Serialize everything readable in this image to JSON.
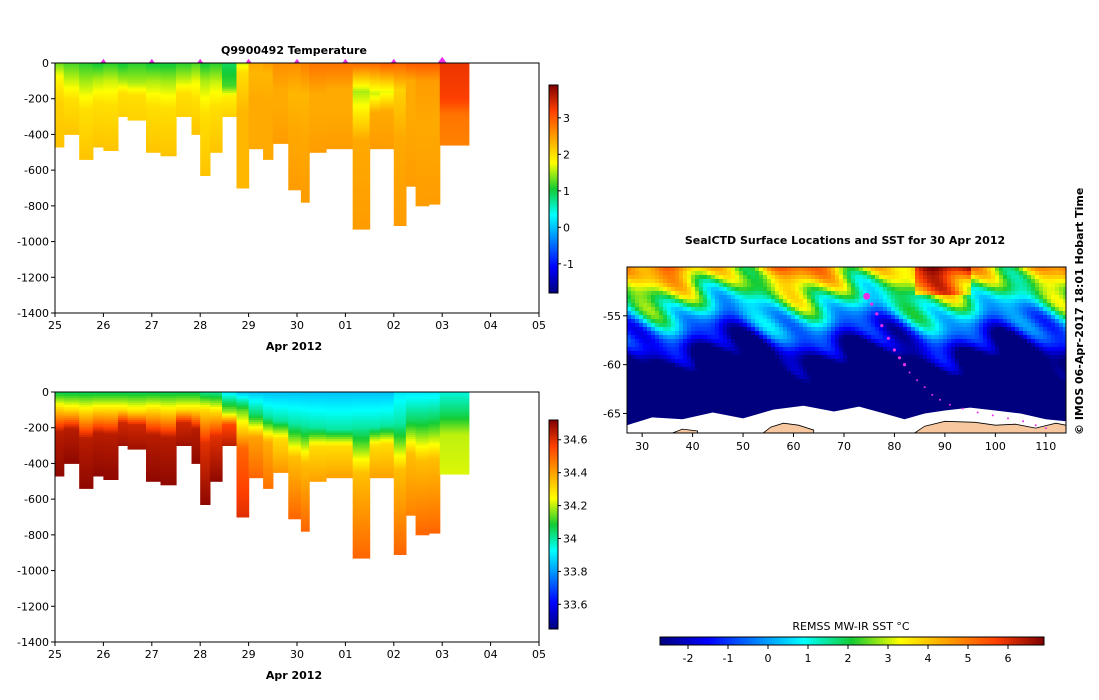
{
  "chart_data": [
    {
      "type": "heatmap",
      "title": "Q9900492  Temperature",
      "variable": "temperature",
      "xlabel": "Apr 2012",
      "x_ticks": [
        "25",
        "26",
        "27",
        "28",
        "29",
        "30",
        "01",
        "02",
        "03",
        "04",
        "05"
      ],
      "x_tick_days": [
        0,
        1,
        2,
        3,
        4,
        5,
        6,
        7,
        8,
        9,
        10
      ],
      "xlim": [
        0,
        10
      ],
      "y_ticks": [
        0,
        -200,
        -400,
        -600,
        -800,
        -1000,
        -1200,
        -1400
      ],
      "ylim": [
        -1400,
        0
      ],
      "colorbar_ticks": [
        -1,
        0,
        1,
        2,
        3
      ],
      "colorbar_range": [
        -1.8,
        3.9
      ],
      "surface_markers_days": [
        1,
        2,
        3,
        4,
        5,
        6,
        7,
        8
      ],
      "profiles": [
        {
          "start": 0.0,
          "end": 0.18,
          "depth": -470,
          "surface": 1.3,
          "mixed_depth": -80,
          "mixed": 1.8,
          "deep": 2.1,
          "bottom": 2.2
        },
        {
          "start": 0.18,
          "end": 0.5,
          "depth": -400,
          "surface": 1.2,
          "mixed_depth": -100,
          "mixed": 1.6,
          "deep": 2.0,
          "bottom": 2.2
        },
        {
          "start": 0.5,
          "end": 0.78,
          "depth": -540,
          "surface": 1.1,
          "mixed_depth": -110,
          "mixed": 1.5,
          "deep": 2.0,
          "bottom": 2.2
        },
        {
          "start": 0.78,
          "end": 1.0,
          "depth": -470,
          "surface": 1.0,
          "mixed_depth": -90,
          "mixed": 1.5,
          "deep": 2.0,
          "bottom": 2.2
        },
        {
          "start": 1.0,
          "end": 1.3,
          "depth": -490,
          "surface": 1.1,
          "mixed_depth": -100,
          "mixed": 1.6,
          "deep": 2.0,
          "bottom": 2.2
        },
        {
          "start": 1.3,
          "end": 1.5,
          "depth": -300,
          "surface": 1.0,
          "mixed_depth": -100,
          "mixed": 1.5,
          "deep": 2.0,
          "bottom": 2.1
        },
        {
          "start": 1.5,
          "end": 1.88,
          "depth": -320,
          "surface": 1.1,
          "mixed_depth": -110,
          "mixed": 1.5,
          "deep": 2.0,
          "bottom": 2.1
        },
        {
          "start": 1.88,
          "end": 2.18,
          "depth": -500,
          "surface": 1.0,
          "mixed_depth": -100,
          "mixed": 1.5,
          "deep": 2.0,
          "bottom": 2.2
        },
        {
          "start": 2.18,
          "end": 2.5,
          "depth": -520,
          "surface": 1.0,
          "mixed_depth": -110,
          "mixed": 1.5,
          "deep": 2.0,
          "bottom": 2.2
        },
        {
          "start": 2.5,
          "end": 2.82,
          "depth": -300,
          "surface": 1.1,
          "mixed_depth": -100,
          "mixed": 1.6,
          "deep": 2.0,
          "bottom": 2.1
        },
        {
          "start": 2.82,
          "end": 3.0,
          "depth": -400,
          "surface": 1.2,
          "mixed_depth": -100,
          "mixed": 1.7,
          "deep": 2.0,
          "bottom": 2.2
        },
        {
          "start": 3.0,
          "end": 3.2,
          "depth": -630,
          "surface": 1.0,
          "mixed_depth": -100,
          "mixed": 1.5,
          "deep": 2.0,
          "bottom": 2.2
        },
        {
          "start": 3.2,
          "end": 3.45,
          "depth": -500,
          "surface": 1.1,
          "mixed_depth": -110,
          "mixed": 1.6,
          "deep": 2.0,
          "bottom": 2.2
        },
        {
          "start": 3.45,
          "end": 3.75,
          "depth": -300,
          "surface": 0.9,
          "mixed_depth": -130,
          "mixed": 1.2,
          "deep": 1.9,
          "bottom": 2.1
        },
        {
          "start": 3.75,
          "end": 4.0,
          "depth": -700,
          "surface": 1.6,
          "mixed_depth": -50,
          "mixed": 2.0,
          "deep": 2.3,
          "bottom": 2.3
        },
        {
          "start": 4.0,
          "end": 4.3,
          "depth": -480,
          "surface": 2.4,
          "mixed_depth": -60,
          "mixed": 2.3,
          "deep": 2.4,
          "bottom": 2.4
        },
        {
          "start": 4.3,
          "end": 4.5,
          "depth": -540,
          "surface": 2.5,
          "mixed_depth": -60,
          "mixed": 2.3,
          "deep": 2.4,
          "bottom": 2.4
        },
        {
          "start": 4.5,
          "end": 4.82,
          "depth": -450,
          "surface": 2.6,
          "mixed_depth": -150,
          "mixed": 2.4,
          "deep": 2.4,
          "bottom": 2.5
        },
        {
          "start": 4.82,
          "end": 5.08,
          "depth": -710,
          "surface": 2.6,
          "mixed_depth": -170,
          "mixed": 2.3,
          "deep": 2.4,
          "bottom": 2.5
        },
        {
          "start": 5.08,
          "end": 5.25,
          "depth": -780,
          "surface": 2.7,
          "mixed_depth": -180,
          "mixed": 2.3,
          "deep": 2.4,
          "bottom": 2.5
        },
        {
          "start": 5.25,
          "end": 5.6,
          "depth": -500,
          "surface": 2.8,
          "mixed_depth": -170,
          "mixed": 2.4,
          "deep": 2.4,
          "bottom": 2.5
        },
        {
          "start": 5.6,
          "end": 6.15,
          "depth": -480,
          "surface": 2.8,
          "mixed_depth": -150,
          "mixed": 2.4,
          "deep": 2.4,
          "bottom": 2.5
        },
        {
          "start": 6.15,
          "end": 6.5,
          "depth": -930,
          "surface": 2.9,
          "mixed_depth": -160,
          "mixed": 1.5,
          "deep": 2.4,
          "bottom": 2.5
        },
        {
          "start": 6.5,
          "end": 6.72,
          "depth": -480,
          "surface": 2.9,
          "mixed_depth": -170,
          "mixed": 1.6,
          "deep": 2.4,
          "bottom": 2.5
        },
        {
          "start": 6.72,
          "end": 7.0,
          "depth": -480,
          "surface": 3.0,
          "mixed_depth": -160,
          "mixed": 1.7,
          "deep": 2.4,
          "bottom": 2.5
        },
        {
          "start": 7.0,
          "end": 7.25,
          "depth": -910,
          "surface": 2.9,
          "mixed_depth": -150,
          "mixed": 2.1,
          "deep": 2.4,
          "bottom": 2.5
        },
        {
          "start": 7.25,
          "end": 7.45,
          "depth": -690,
          "surface": 3.0,
          "mixed_depth": -100,
          "mixed": 2.4,
          "deep": 2.4,
          "bottom": 2.5
        },
        {
          "start": 7.45,
          "end": 7.72,
          "depth": -800,
          "surface": 3.0,
          "mixed_depth": -100,
          "mixed": 2.5,
          "deep": 2.4,
          "bottom": 2.5
        },
        {
          "start": 7.72,
          "end": 7.95,
          "depth": -790,
          "surface": 3.0,
          "mixed_depth": -100,
          "mixed": 2.5,
          "deep": 2.4,
          "bottom": 2.5
        },
        {
          "start": 7.95,
          "end": 8.55,
          "depth": -460,
          "surface": 3.3,
          "mixed_depth": -200,
          "mixed": 3.2,
          "deep": 2.8,
          "bottom": 2.7
        }
      ]
    },
    {
      "type": "heatmap",
      "title": "",
      "variable": "salinity",
      "xlabel": "Apr 2012",
      "x_ticks": [
        "25",
        "26",
        "27",
        "28",
        "29",
        "30",
        "01",
        "02",
        "03",
        "04",
        "05"
      ],
      "x_tick_days": [
        0,
        1,
        2,
        3,
        4,
        5,
        6,
        7,
        8,
        9,
        10
      ],
      "xlim": [
        0,
        10
      ],
      "y_ticks": [
        0,
        -200,
        -400,
        -600,
        -800,
        -1000,
        -1200,
        -1400
      ],
      "ylim": [
        -1400,
        0
      ],
      "colorbar_ticks": [
        33.6,
        33.8,
        34,
        34.2,
        34.4,
        34.6
      ],
      "colorbar_range": [
        33.45,
        34.72
      ],
      "profiles": [
        {
          "start": 0.0,
          "end": 0.18,
          "depth": -470,
          "surface": 34.05,
          "mixed_depth": -90,
          "mixed": 34.3,
          "deep": 34.65,
          "bottom": 34.7
        },
        {
          "start": 0.18,
          "end": 0.5,
          "depth": -400,
          "surface": 34.05,
          "mixed_depth": -100,
          "mixed": 34.3,
          "deep": 34.65,
          "bottom": 34.7
        },
        {
          "start": 0.5,
          "end": 0.78,
          "depth": -540,
          "surface": 34.05,
          "mixed_depth": -110,
          "mixed": 34.3,
          "deep": 34.65,
          "bottom": 34.7
        },
        {
          "start": 0.78,
          "end": 1.0,
          "depth": -470,
          "surface": 34.05,
          "mixed_depth": -100,
          "mixed": 34.3,
          "deep": 34.65,
          "bottom": 34.7
        },
        {
          "start": 1.0,
          "end": 1.3,
          "depth": -490,
          "surface": 34.05,
          "mixed_depth": -100,
          "mixed": 34.3,
          "deep": 34.65,
          "bottom": 34.7
        },
        {
          "start": 1.3,
          "end": 1.5,
          "depth": -300,
          "surface": 34.05,
          "mixed_depth": -100,
          "mixed": 34.3,
          "deep": 34.62,
          "bottom": 34.68
        },
        {
          "start": 1.5,
          "end": 1.88,
          "depth": -320,
          "surface": 34.05,
          "mixed_depth": -110,
          "mixed": 34.3,
          "deep": 34.62,
          "bottom": 34.68
        },
        {
          "start": 1.88,
          "end": 2.18,
          "depth": -500,
          "surface": 34.05,
          "mixed_depth": -100,
          "mixed": 34.3,
          "deep": 34.65,
          "bottom": 34.7
        },
        {
          "start": 2.18,
          "end": 2.5,
          "depth": -520,
          "surface": 34.05,
          "mixed_depth": -110,
          "mixed": 34.3,
          "deep": 34.65,
          "bottom": 34.7
        },
        {
          "start": 2.5,
          "end": 2.82,
          "depth": -300,
          "surface": 34.05,
          "mixed_depth": -100,
          "mixed": 34.3,
          "deep": 34.62,
          "bottom": 34.68
        },
        {
          "start": 2.82,
          "end": 3.0,
          "depth": -400,
          "surface": 34.05,
          "mixed_depth": -100,
          "mixed": 34.3,
          "deep": 34.65,
          "bottom": 34.7
        },
        {
          "start": 3.0,
          "end": 3.2,
          "depth": -630,
          "surface": 34.0,
          "mixed_depth": -100,
          "mixed": 34.3,
          "deep": 34.6,
          "bottom": 34.7
        },
        {
          "start": 3.2,
          "end": 3.45,
          "depth": -500,
          "surface": 34.0,
          "mixed_depth": -110,
          "mixed": 34.3,
          "deep": 34.6,
          "bottom": 34.7
        },
        {
          "start": 3.45,
          "end": 3.75,
          "depth": -300,
          "surface": 33.9,
          "mixed_depth": -120,
          "mixed": 34.2,
          "deep": 34.55,
          "bottom": 34.65
        },
        {
          "start": 3.75,
          "end": 4.0,
          "depth": -700,
          "surface": 33.85,
          "mixed_depth": -110,
          "mixed": 34.15,
          "deep": 34.5,
          "bottom": 34.6
        },
        {
          "start": 4.0,
          "end": 4.3,
          "depth": -480,
          "surface": 33.85,
          "mixed_depth": -130,
          "mixed": 34.05,
          "deep": 34.4,
          "bottom": 34.5
        },
        {
          "start": 4.3,
          "end": 4.5,
          "depth": -540,
          "surface": 33.85,
          "mixed_depth": -140,
          "mixed": 34.0,
          "deep": 34.38,
          "bottom": 34.48
        },
        {
          "start": 4.5,
          "end": 4.82,
          "depth": -450,
          "surface": 33.85,
          "mixed_depth": -160,
          "mixed": 34.0,
          "deep": 34.3,
          "bottom": 34.42
        },
        {
          "start": 4.82,
          "end": 5.08,
          "depth": -710,
          "surface": 33.85,
          "mixed_depth": -180,
          "mixed": 34.0,
          "deep": 34.35,
          "bottom": 34.5
        },
        {
          "start": 5.08,
          "end": 5.25,
          "depth": -780,
          "surface": 33.85,
          "mixed_depth": -190,
          "mixed": 34.0,
          "deep": 34.35,
          "bottom": 34.5
        },
        {
          "start": 5.25,
          "end": 5.6,
          "depth": -500,
          "surface": 33.85,
          "mixed_depth": -200,
          "mixed": 34.0,
          "deep": 34.3,
          "bottom": 34.4
        },
        {
          "start": 5.6,
          "end": 6.15,
          "depth": -480,
          "surface": 33.85,
          "mixed_depth": -210,
          "mixed": 34.0,
          "deep": 34.3,
          "bottom": 34.4
        },
        {
          "start": 6.15,
          "end": 6.5,
          "depth": -930,
          "surface": 33.85,
          "mixed_depth": -200,
          "mixed": 34.0,
          "deep": 34.35,
          "bottom": 34.5
        },
        {
          "start": 6.5,
          "end": 6.72,
          "depth": -480,
          "surface": 33.85,
          "mixed_depth": -200,
          "mixed": 34.0,
          "deep": 34.3,
          "bottom": 34.4
        },
        {
          "start": 6.72,
          "end": 7.0,
          "depth": -480,
          "surface": 33.85,
          "mixed_depth": -190,
          "mixed": 34.0,
          "deep": 34.3,
          "bottom": 34.4
        },
        {
          "start": 7.0,
          "end": 7.25,
          "depth": -910,
          "surface": 33.9,
          "mixed_depth": -180,
          "mixed": 34.0,
          "deep": 34.35,
          "bottom": 34.5
        },
        {
          "start": 7.25,
          "end": 7.45,
          "depth": -690,
          "surface": 33.9,
          "mixed_depth": -160,
          "mixed": 34.05,
          "deep": 34.35,
          "bottom": 34.45
        },
        {
          "start": 7.45,
          "end": 7.72,
          "depth": -800,
          "surface": 33.9,
          "mixed_depth": -160,
          "mixed": 34.05,
          "deep": 34.35,
          "bottom": 34.5
        },
        {
          "start": 7.72,
          "end": 7.95,
          "depth": -790,
          "surface": 33.9,
          "mixed_depth": -150,
          "mixed": 34.05,
          "deep": 34.35,
          "bottom": 34.5
        },
        {
          "start": 7.95,
          "end": 8.55,
          "depth": -460,
          "surface": 33.95,
          "mixed_depth": -120,
          "mixed": 34.05,
          "deep": 34.2,
          "bottom": 34.22
        }
      ]
    },
    {
      "type": "heatmap",
      "title": "SealCTD Surface Locations and SST for 30 Apr 2012",
      "variable": "sst_map",
      "xlabel": "",
      "x_ticks": [
        30,
        40,
        50,
        60,
        70,
        80,
        90,
        100,
        110
      ],
      "xlim": [
        27,
        114
      ],
      "y_ticks": [
        -55,
        -60,
        -65
      ],
      "ylim": [
        -67,
        -50
      ],
      "track": [
        [
          74.5,
          -53
        ],
        [
          75.5,
          -53.8
        ],
        [
          76.5,
          -54.8
        ],
        [
          77.5,
          -56
        ],
        [
          78.8,
          -57.3
        ],
        [
          80,
          -58.5
        ],
        [
          81,
          -59.3
        ],
        [
          82,
          -60
        ],
        [
          83,
          -60.8
        ],
        [
          84.5,
          -61.6
        ],
        [
          86,
          -62.3
        ],
        [
          87.5,
          -63.1
        ],
        [
          89,
          -63.6
        ],
        [
          91,
          -64.1
        ],
        [
          93.5,
          -64.5
        ],
        [
          96.5,
          -64.9
        ],
        [
          99.5,
          -65.2
        ],
        [
          102.5,
          -65.5
        ],
        [
          105.5,
          -65.8
        ],
        [
          108,
          -66.2
        ],
        [
          110,
          -66.5
        ]
      ],
      "current_position": [
        74.5,
        -53
      ],
      "colorbar_label": "REMSS MW-IR SST °C",
      "colorbar_ticks": [
        "-2",
        "-1",
        "0",
        "1",
        "2",
        "3",
        "4",
        "5",
        "6"
      ],
      "colorbar_range": [
        -2.7,
        6.9
      ]
    }
  ],
  "credit": "© IMOS 06-Apr-2017 18:01 Hobart Time",
  "colors": {
    "track": "#e830e8",
    "land": "#f7c7a0",
    "ice": "#ffffff",
    "text": "#000000"
  }
}
